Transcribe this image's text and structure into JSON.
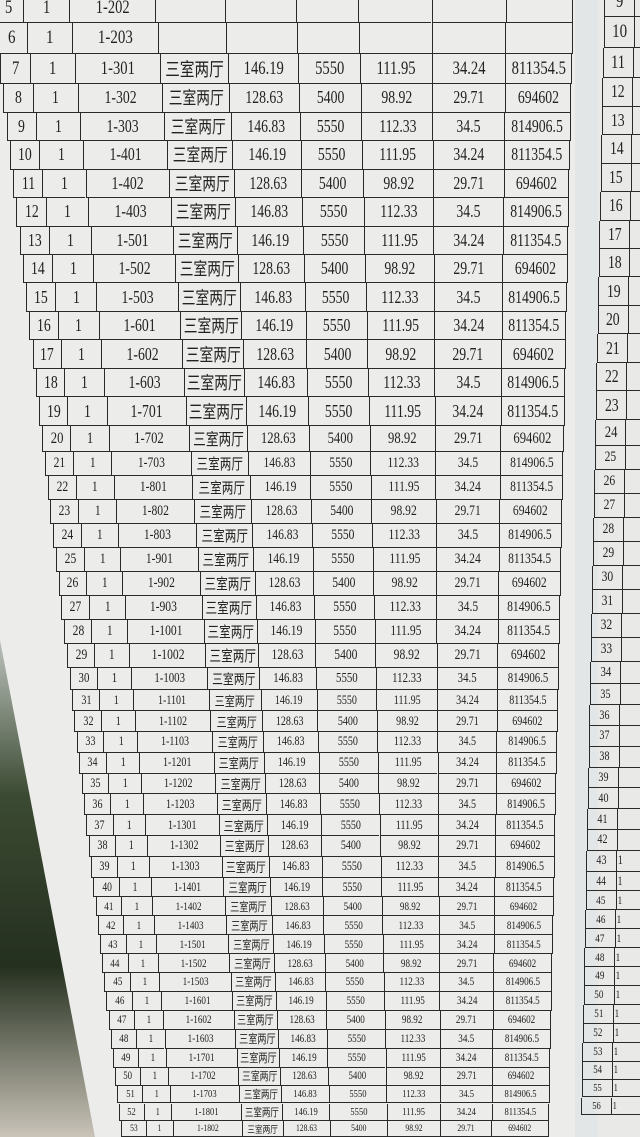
{
  "left_table": {
    "rows": [
      [
        "5",
        "1",
        "1-202",
        "",
        "",
        "",
        "",
        "",
        ""
      ],
      [
        "6",
        "1",
        "1-203",
        "",
        "",
        "",
        "",
        "",
        ""
      ],
      [
        "7",
        "1",
        "1-301",
        "三室两厅",
        "146.19",
        "5550",
        "111.95",
        "34.24",
        "811354.5"
      ],
      [
        "8",
        "1",
        "1-302",
        "三室两厅",
        "128.63",
        "5400",
        "98.92",
        "29.71",
        "694602"
      ],
      [
        "9",
        "1",
        "1-303",
        "三室两厅",
        "146.83",
        "5550",
        "112.33",
        "34.5",
        "814906.5"
      ],
      [
        "10",
        "1",
        "1-401",
        "三室两厅",
        "146.19",
        "5550",
        "111.95",
        "34.24",
        "811354.5"
      ],
      [
        "11",
        "1",
        "1-402",
        "三室两厅",
        "128.63",
        "5400",
        "98.92",
        "29.71",
        "694602"
      ],
      [
        "12",
        "1",
        "1-403",
        "三室两厅",
        "146.83",
        "5550",
        "112.33",
        "34.5",
        "814906.5"
      ],
      [
        "13",
        "1",
        "1-501",
        "三室两厅",
        "146.19",
        "5550",
        "111.95",
        "34.24",
        "811354.5"
      ],
      [
        "14",
        "1",
        "1-502",
        "三室两厅",
        "128.63",
        "5400",
        "98.92",
        "29.71",
        "694602"
      ],
      [
        "15",
        "1",
        "1-503",
        "三室两厅",
        "146.83",
        "5550",
        "112.33",
        "34.5",
        "814906.5"
      ],
      [
        "16",
        "1",
        "1-601",
        "三室两厅",
        "146.19",
        "5550",
        "111.95",
        "34.24",
        "811354.5"
      ],
      [
        "17",
        "1",
        "1-602",
        "三室两厅",
        "128.63",
        "5400",
        "98.92",
        "29.71",
        "694602"
      ],
      [
        "18",
        "1",
        "1-603",
        "三室两厅",
        "146.83",
        "5550",
        "112.33",
        "34.5",
        "814906.5"
      ],
      [
        "19",
        "1",
        "1-701",
        "三室两厅",
        "146.19",
        "5550",
        "111.95",
        "34.24",
        "811354.5"
      ],
      [
        "20",
        "1",
        "1-702",
        "三室两厅",
        "128.63",
        "5400",
        "98.92",
        "29.71",
        "694602"
      ],
      [
        "21",
        "1",
        "1-703",
        "三室两厅",
        "146.83",
        "5550",
        "112.33",
        "34.5",
        "814906.5"
      ],
      [
        "22",
        "1",
        "1-801",
        "三室两厅",
        "146.19",
        "5550",
        "111.95",
        "34.24",
        "811354.5"
      ],
      [
        "23",
        "1",
        "1-802",
        "三室两厅",
        "128.63",
        "5400",
        "98.92",
        "29.71",
        "694602"
      ],
      [
        "24",
        "1",
        "1-803",
        "三室两厅",
        "146.83",
        "5550",
        "112.33",
        "34.5",
        "814906.5"
      ],
      [
        "25",
        "1",
        "1-901",
        "三室两厅",
        "146.19",
        "5550",
        "111.95",
        "34.24",
        "811354.5"
      ],
      [
        "26",
        "1",
        "1-902",
        "三室两厅",
        "128.63",
        "5400",
        "98.92",
        "29.71",
        "694602"
      ],
      [
        "27",
        "1",
        "1-903",
        "三室两厅",
        "146.83",
        "5550",
        "112.33",
        "34.5",
        "814906.5"
      ],
      [
        "28",
        "1",
        "1-1001",
        "三室两厅",
        "146.19",
        "5550",
        "111.95",
        "34.24",
        "811354.5"
      ],
      [
        "29",
        "1",
        "1-1002",
        "三室两厅",
        "128.63",
        "5400",
        "98.92",
        "29.71",
        "694602"
      ],
      [
        "30",
        "1",
        "1-1003",
        "三室两厅",
        "146.83",
        "5550",
        "112.33",
        "34.5",
        "814906.5"
      ],
      [
        "31",
        "1",
        "1-1101",
        "三室两厅",
        "146.19",
        "5550",
        "111.95",
        "34.24",
        "811354.5"
      ],
      [
        "32",
        "1",
        "1-1102",
        "三室两厅",
        "128.63",
        "5400",
        "98.92",
        "29.71",
        "694602"
      ],
      [
        "33",
        "1",
        "1-1103",
        "三室两厅",
        "146.83",
        "5550",
        "112.33",
        "34.5",
        "814906.5"
      ],
      [
        "34",
        "1",
        "1-1201",
        "三室两厅",
        "146.19",
        "5550",
        "111.95",
        "34.24",
        "811354.5"
      ],
      [
        "35",
        "1",
        "1-1202",
        "三室两厅",
        "128.63",
        "5400",
        "98.92",
        "29.71",
        "694602"
      ],
      [
        "36",
        "1",
        "1-1203",
        "三室两厅",
        "146.83",
        "5550",
        "112.33",
        "34.5",
        "814906.5"
      ],
      [
        "37",
        "1",
        "1-1301",
        "三室两厅",
        "146.19",
        "5550",
        "111.95",
        "34.24",
        "811354.5"
      ],
      [
        "38",
        "1",
        "1-1302",
        "三室两厅",
        "128.63",
        "5400",
        "98.92",
        "29.71",
        "694602"
      ],
      [
        "39",
        "1",
        "1-1303",
        "三室两厅",
        "146.83",
        "5550",
        "112.33",
        "34.5",
        "814906.5"
      ],
      [
        "40",
        "1",
        "1-1401",
        "三室两厅",
        "146.19",
        "5550",
        "111.95",
        "34.24",
        "811354.5"
      ],
      [
        "41",
        "1",
        "1-1402",
        "三室两厅",
        "128.63",
        "5400",
        "98.92",
        "29.71",
        "694602"
      ],
      [
        "42",
        "1",
        "1-1403",
        "三室两厅",
        "146.83",
        "5550",
        "112.33",
        "34.5",
        "814906.5"
      ],
      [
        "43",
        "1",
        "1-1501",
        "三室两厅",
        "146.19",
        "5550",
        "111.95",
        "34.24",
        "811354.5"
      ],
      [
        "44",
        "1",
        "1-1502",
        "三室两厅",
        "128.63",
        "5400",
        "98.92",
        "29.71",
        "694602"
      ],
      [
        "45",
        "1",
        "1-1503",
        "三室两厅",
        "146.83",
        "5550",
        "112.33",
        "34.5",
        "814906.5"
      ],
      [
        "46",
        "1",
        "1-1601",
        "三室两厅",
        "146.19",
        "5550",
        "111.95",
        "34.24",
        "811354.5"
      ],
      [
        "47",
        "1",
        "1-1602",
        "三室两厅",
        "128.63",
        "5400",
        "98.92",
        "29.71",
        "694602"
      ],
      [
        "48",
        "1",
        "1-1603",
        "三室两厅",
        "146.83",
        "5550",
        "112.33",
        "34.5",
        "814906.5"
      ],
      [
        "49",
        "1",
        "1-1701",
        "三室两厅",
        "146.19",
        "5550",
        "111.95",
        "34.24",
        "811354.5"
      ],
      [
        "50",
        "1",
        "1-1702",
        "三室两厅",
        "128.63",
        "5400",
        "98.92",
        "29.71",
        "694602"
      ],
      [
        "51",
        "1",
        "1-1703",
        "三室两厅",
        "146.83",
        "5550",
        "112.33",
        "34.5",
        "814906.5"
      ],
      [
        "52",
        "1",
        "1-1801",
        "三室两厅",
        "146.19",
        "5550",
        "111.95",
        "34.24",
        "811354.5"
      ],
      [
        "53",
        "1",
        "1-1802",
        "三室两厅",
        "128.63",
        "5400",
        "98.92",
        "29.71",
        "694602"
      ]
    ]
  },
  "right_table": {
    "rows": [
      [
        "9",
        ""
      ],
      [
        "10",
        ""
      ],
      [
        "11",
        ""
      ],
      [
        "12",
        ""
      ],
      [
        "13",
        ""
      ],
      [
        "14",
        ""
      ],
      [
        "15",
        ""
      ],
      [
        "16",
        ""
      ],
      [
        "17",
        ""
      ],
      [
        "18",
        ""
      ],
      [
        "19",
        ""
      ],
      [
        "20",
        ""
      ],
      [
        "21",
        ""
      ],
      [
        "22",
        ""
      ],
      [
        "23",
        ""
      ],
      [
        "24",
        ""
      ],
      [
        "25",
        ""
      ],
      [
        "26",
        ""
      ],
      [
        "27",
        ""
      ],
      [
        "28",
        ""
      ],
      [
        "29",
        ""
      ],
      [
        "30",
        ""
      ],
      [
        "31",
        ""
      ],
      [
        "32",
        ""
      ],
      [
        "33",
        ""
      ],
      [
        "34",
        ""
      ],
      [
        "35",
        ""
      ],
      [
        "36",
        ""
      ],
      [
        "37",
        ""
      ],
      [
        "38",
        ""
      ],
      [
        "39",
        ""
      ],
      [
        "40",
        ""
      ],
      [
        "41",
        ""
      ],
      [
        "42",
        ""
      ],
      [
        "43",
        "1"
      ],
      [
        "44",
        "1"
      ],
      [
        "45",
        "1"
      ],
      [
        "46",
        "1"
      ],
      [
        "47",
        "1"
      ],
      [
        "48",
        "1"
      ],
      [
        "49",
        "1"
      ],
      [
        "50",
        "1"
      ],
      [
        "51",
        "1"
      ],
      [
        "52",
        "1"
      ],
      [
        "53",
        "1"
      ],
      [
        "54",
        "1"
      ],
      [
        "55",
        "1"
      ],
      [
        "56",
        "1"
      ]
    ]
  }
}
